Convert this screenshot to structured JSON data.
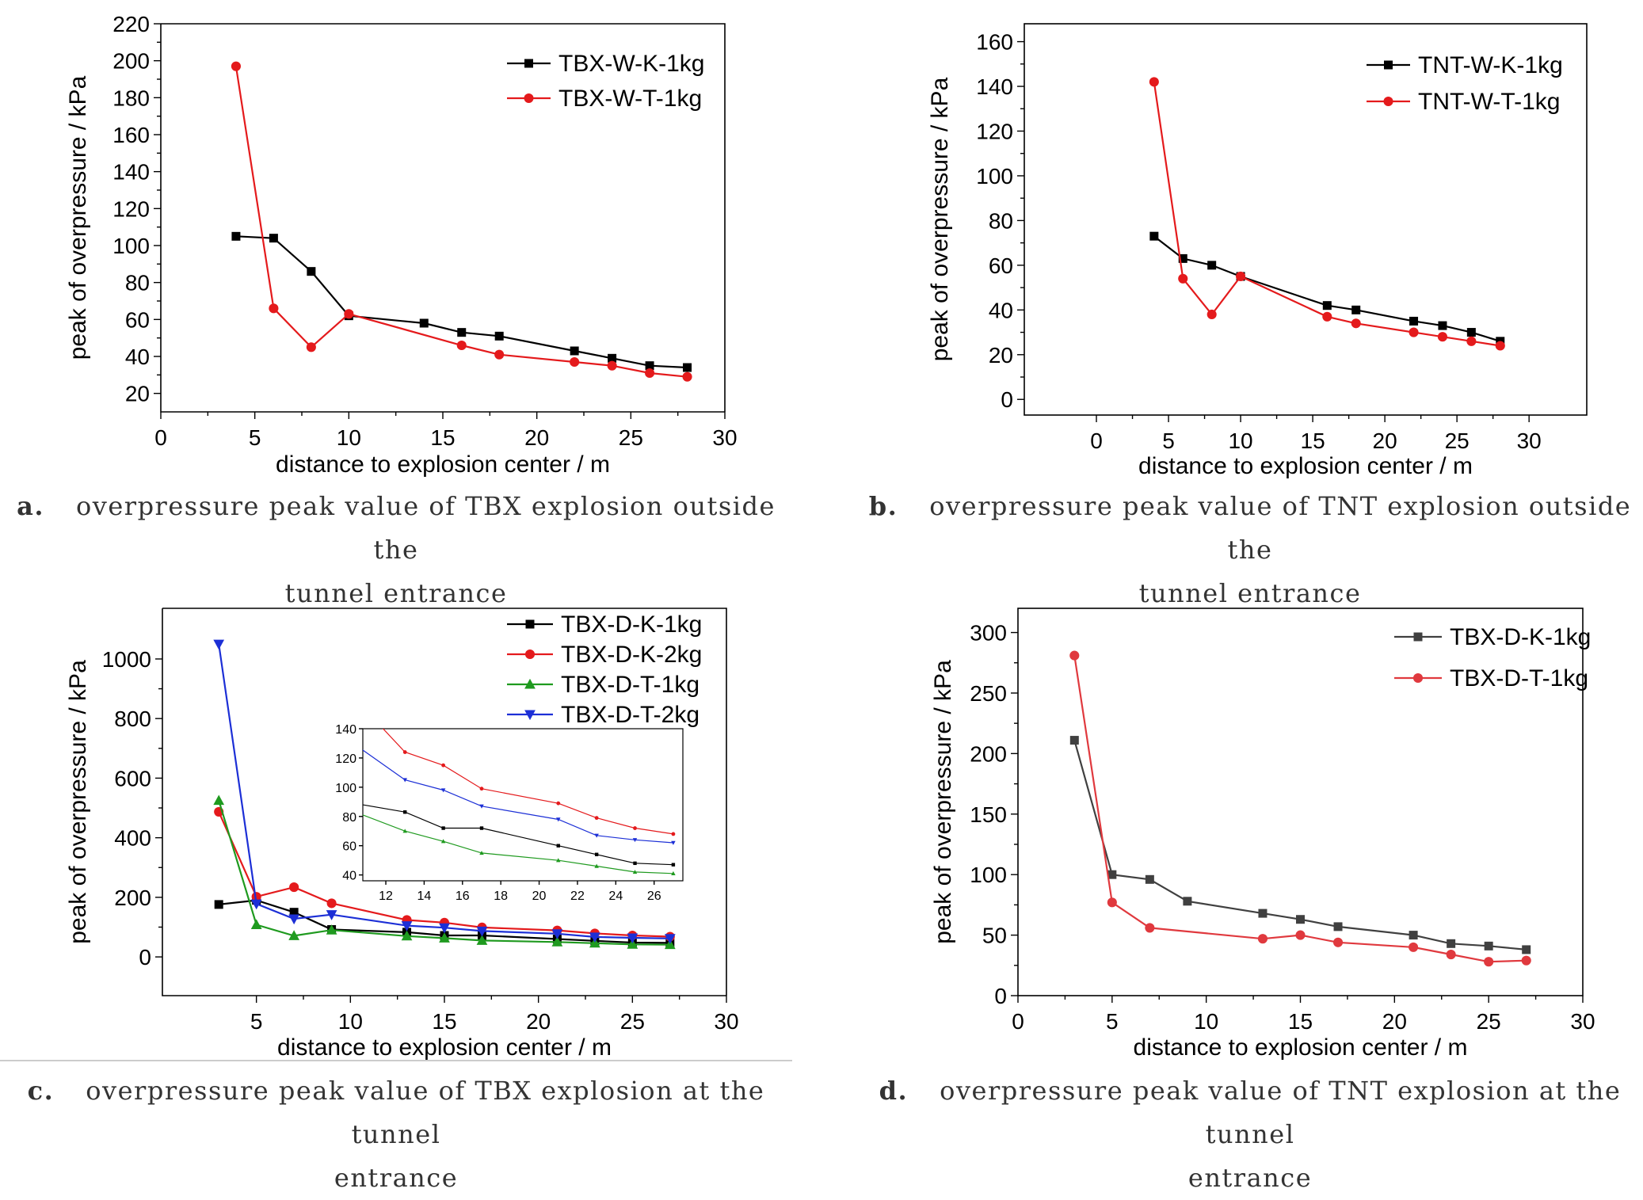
{
  "captions": {
    "a": {
      "letter": "a.",
      "text": "overpressure peak value of TBX explosion outside the",
      "text2": "tunnel entrance"
    },
    "b": {
      "letter": "b.",
      "text": "overpressure peak value of TNT explosion outside the",
      "text2": "tunnel entrance"
    },
    "c": {
      "letter": "c.",
      "text": "overpressure peak value of TBX explosion at the tunnel",
      "text2": "entrance"
    },
    "d": {
      "letter": "d.",
      "text": "overpressure peak value of TNT explosion at the tunnel",
      "text2": "entrance"
    }
  },
  "chart_data": [
    {
      "id": "a",
      "type": "line",
      "xlabel": "distance to explosion center / m",
      "ylabel": "peak of overpressure / kPa",
      "xlim": [
        0,
        30
      ],
      "ylim": [
        10,
        220
      ],
      "xticks": [
        0,
        5,
        10,
        15,
        20,
        25,
        30
      ],
      "yticks": [
        20,
        40,
        60,
        80,
        100,
        120,
        140,
        160,
        180,
        200,
        220
      ],
      "legend_position": "top-right",
      "series": [
        {
          "name": "TBX-W-K-1kg",
          "color": "#000000",
          "marker": "square",
          "x": [
            4,
            6,
            8,
            10,
            14,
            16,
            18,
            22,
            24,
            26,
            28
          ],
          "y": [
            105,
            104,
            86,
            62,
            58,
            53,
            51,
            43,
            39,
            35,
            34
          ]
        },
        {
          "name": "TBX-W-T-1kg",
          "color": "#e41a1c",
          "marker": "circle",
          "x": [
            4,
            6,
            8,
            10,
            16,
            18,
            22,
            24,
            26,
            28
          ],
          "y": [
            197,
            66,
            45,
            63,
            46,
            41,
            37,
            35,
            31,
            29
          ]
        }
      ]
    },
    {
      "id": "b",
      "type": "line",
      "xlabel": "distance to explosion center / m",
      "ylabel": "peak of overpressure / kPa",
      "xlim": [
        -5,
        34
      ],
      "ylim": [
        -7,
        168
      ],
      "xticks": [
        0,
        5,
        10,
        15,
        20,
        25,
        30
      ],
      "yticks": [
        0,
        20,
        40,
        60,
        80,
        100,
        120,
        140,
        160
      ],
      "legend_position": "top-right",
      "series": [
        {
          "name": "TNT-W-K-1kg",
          "color": "#000000",
          "marker": "square",
          "x": [
            4,
            6,
            8,
            10,
            16,
            18,
            22,
            24,
            26,
            28
          ],
          "y": [
            73,
            63,
            60,
            55,
            42,
            40,
            35,
            33,
            30,
            26
          ]
        },
        {
          "name": "TNT-W-T-1kg",
          "color": "#e41a1c",
          "marker": "circle",
          "x": [
            4,
            6,
            8,
            10,
            16,
            18,
            22,
            24,
            26,
            28
          ],
          "y": [
            142,
            54,
            38,
            55,
            37,
            34,
            30,
            28,
            26,
            24
          ]
        }
      ]
    },
    {
      "id": "c",
      "type": "line",
      "xlabel": "distance to explosion center / m",
      "ylabel": "peak of overpressure / kPa",
      "xlim": [
        0,
        30
      ],
      "ylim": [
        -130,
        1170
      ],
      "xticks": [
        5,
        10,
        15,
        20,
        25,
        30
      ],
      "yticks": [
        0,
        200,
        400,
        600,
        800,
        1000
      ],
      "legend_position": "top-right",
      "series": [
        {
          "name": "TBX-D-K-1kg",
          "color": "#000000",
          "marker": "square",
          "x": [
            3,
            5,
            7,
            9,
            13,
            15,
            17,
            21,
            23,
            25,
            27
          ],
          "y": [
            176,
            190,
            150,
            92,
            83,
            72,
            72,
            60,
            54,
            48,
            47
          ]
        },
        {
          "name": "TBX-D-K-2kg",
          "color": "#e41a1c",
          "marker": "circle",
          "x": [
            3,
            5,
            7,
            9,
            13,
            15,
            17,
            21,
            23,
            25,
            27
          ],
          "y": [
            487,
            202,
            234,
            180,
            124,
            115,
            99,
            89,
            79,
            72,
            68
          ]
        },
        {
          "name": "TBX-D-T-1kg",
          "color": "#1f9a1f",
          "marker": "triangle-up",
          "x": [
            3,
            5,
            7,
            9,
            13,
            15,
            17,
            21,
            23,
            25,
            27
          ],
          "y": [
            525,
            108,
            71,
            90,
            70,
            63,
            55,
            50,
            46,
            42,
            41
          ]
        },
        {
          "name": "TBX-D-T-2kg",
          "color": "#1c2fd6",
          "marker": "triangle-down",
          "x": [
            3,
            5,
            7,
            9,
            13,
            15,
            17,
            21,
            23,
            25,
            27
          ],
          "y": [
            1050,
            178,
            128,
            142,
            105,
            98,
            87,
            78,
            67,
            64,
            62
          ]
        }
      ],
      "inset": {
        "xlim": [
          10.8,
          27.5
        ],
        "ylim": [
          36,
          140
        ],
        "xticks": [
          12,
          14,
          16,
          18,
          20,
          22,
          24,
          26
        ],
        "yticks": [
          40,
          60,
          80,
          100,
          120,
          140
        ]
      }
    },
    {
      "id": "d",
      "type": "line",
      "xlabel": "distance to explosion center / m",
      "ylabel": "peak of overpressure / kPa",
      "xlim": [
        0,
        30
      ],
      "ylim": [
        0,
        320
      ],
      "xticks": [
        0,
        5,
        10,
        15,
        20,
        25,
        30
      ],
      "yticks": [
        0,
        50,
        100,
        150,
        200,
        250,
        300
      ],
      "legend_position": "top-right",
      "series": [
        {
          "name": "TBX-D-K-1kg",
          "color": "#404040",
          "marker": "square",
          "x": [
            3,
            5,
            7,
            9,
            13,
            15,
            17,
            21,
            23,
            25,
            27
          ],
          "y": [
            211,
            100,
            96,
            78,
            68,
            63,
            57,
            50,
            43,
            41,
            38
          ]
        },
        {
          "name": "TBX-D-T-1kg",
          "color": "#e0393e",
          "marker": "circle",
          "x": [
            3,
            5,
            7,
            9,
            13,
            15,
            17,
            21,
            23,
            25,
            27
          ],
          "y": [
            281,
            77,
            56,
            null,
            47,
            50,
            44,
            40,
            34,
            28,
            29
          ]
        }
      ]
    }
  ]
}
